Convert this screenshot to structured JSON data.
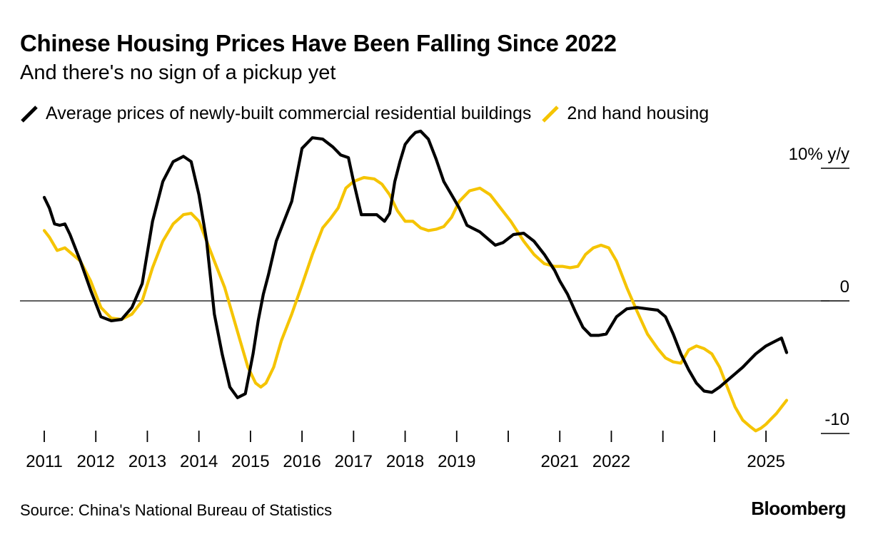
{
  "header": {
    "title": "Chinese Housing Prices Have Been Falling Since 2022",
    "subtitle": "And there's no sign of a pickup yet"
  },
  "legend": [
    {
      "label": "Average prices of newly-built commercial residential buildings",
      "color": "#000000"
    },
    {
      "label": "2nd hand housing",
      "color": "#F5C400"
    }
  ],
  "footer": {
    "source": "Source: China's National Bureau of Statistics",
    "brand": "Bloomberg"
  },
  "chart_data": {
    "type": "line",
    "title": "Chinese Housing Prices Have Been Falling Since 2022",
    "subtitle": "And there's no sign of a pickup yet",
    "xlabel": "",
    "ylabel": "% y/y",
    "ylim": [
      -10.6,
      11
    ],
    "xlim": [
      2010.95,
      2025.5
    ],
    "y_ticks": [
      {
        "value": 10,
        "label": "10% y/y"
      },
      {
        "value": 0,
        "label": "0"
      },
      {
        "value": -10,
        "label": "-10"
      }
    ],
    "x_ticks": [
      2011,
      2012,
      2013,
      2014,
      2015,
      2016,
      2017,
      2018,
      2019,
      2020,
      2021,
      2022,
      2023,
      2024,
      2025
    ],
    "x_tick_labels": [
      {
        "value": 2011,
        "label": "2011"
      },
      {
        "value": 2012,
        "label": "2012"
      },
      {
        "value": 2013,
        "label": "2013"
      },
      {
        "value": 2014,
        "label": "2014"
      },
      {
        "value": 2015,
        "label": "2015"
      },
      {
        "value": 2016,
        "label": "2016"
      },
      {
        "value": 2017,
        "label": "2017"
      },
      {
        "value": 2018,
        "label": "2018"
      },
      {
        "value": 2019,
        "label": "2019"
      },
      {
        "value": 2021,
        "label": "2021"
      },
      {
        "value": 2022,
        "label": "2022"
      },
      {
        "value": 2025,
        "label": "2025"
      }
    ],
    "zero_line": true,
    "grid": false,
    "legend_position": "top-left",
    "series": [
      {
        "name": "Average prices of newly-built commercial residential buildings",
        "color": "#000000",
        "x": [
          2011.0,
          2011.1,
          2011.2,
          2011.3,
          2011.4,
          2011.5,
          2011.7,
          2011.9,
          2012.1,
          2012.3,
          2012.5,
          2012.7,
          2012.9,
          2013.1,
          2013.3,
          2013.5,
          2013.7,
          2013.85,
          2014.0,
          2014.15,
          2014.3,
          2014.45,
          2014.6,
          2014.75,
          2014.9,
          2015.05,
          2015.15,
          2015.25,
          2015.35,
          2015.5,
          2015.65,
          2015.8,
          2016.0,
          2016.2,
          2016.4,
          2016.6,
          2016.75,
          2016.9,
          2017.0,
          2017.15,
          2017.3,
          2017.45,
          2017.6,
          2017.7,
          2017.8,
          2017.9,
          2018.0,
          2018.1,
          2018.2,
          2018.3,
          2018.45,
          2018.6,
          2018.75,
          2018.9,
          2019.05,
          2019.2,
          2019.3,
          2019.45,
          2019.6,
          2019.75,
          2019.9,
          2020.1,
          2020.3,
          2020.5,
          2020.7,
          2020.9,
          2021.0,
          2021.15,
          2021.3,
          2021.45,
          2021.6,
          2021.75,
          2021.9,
          2022.1,
          2022.3,
          2022.5,
          2022.7,
          2022.9,
          2023.05,
          2023.2,
          2023.35,
          2023.5,
          2023.65,
          2023.8,
          2023.95,
          2024.1,
          2024.25,
          2024.4,
          2024.55,
          2024.7,
          2024.8,
          2024.9,
          2025.0,
          2025.1,
          2025.2,
          2025.3,
          2025.4
        ],
        "values": [
          7.8,
          7.0,
          5.8,
          5.7,
          5.8,
          5.0,
          3.0,
          0.8,
          -1.2,
          -1.5,
          -1.4,
          -0.5,
          1.3,
          6.0,
          9.0,
          10.5,
          10.9,
          10.5,
          8.0,
          4.5,
          -1.0,
          -4.0,
          -6.5,
          -7.3,
          -7.0,
          -4.0,
          -1.5,
          0.5,
          2.0,
          4.5,
          6.0,
          7.5,
          11.5,
          12.3,
          12.2,
          11.6,
          11.0,
          10.8,
          9.0,
          6.5,
          6.5,
          6.5,
          6.0,
          6.6,
          9.0,
          10.5,
          11.8,
          12.3,
          12.7,
          12.8,
          12.2,
          10.7,
          9.0,
          8.0,
          7.0,
          5.7,
          5.5,
          5.2,
          4.7,
          4.2,
          4.4,
          5.0,
          5.1,
          4.5,
          3.5,
          2.3,
          1.5,
          0.5,
          -0.8,
          -2.0,
          -2.6,
          -2.6,
          -2.5,
          -1.2,
          -0.6,
          -0.5,
          -0.6,
          -0.7,
          -1.2,
          -2.5,
          -4.0,
          -5.2,
          -6.2,
          -6.8,
          -6.9,
          -6.5,
          -6.0,
          -5.5,
          -5.0,
          -4.4,
          -4.0,
          -3.7,
          -3.4,
          -3.2,
          -3.0,
          -2.8,
          -3.9
        ],
        "original_x_values_note": ""
      },
      {
        "name": "2nd hand housing",
        "color": "#F5C400",
        "x": [
          2011.0,
          2011.1,
          2011.25,
          2011.4,
          2011.55,
          2011.7,
          2011.9,
          2012.1,
          2012.3,
          2012.5,
          2012.7,
          2012.9,
          2013.1,
          2013.3,
          2013.5,
          2013.7,
          2013.85,
          2014.0,
          2014.15,
          2014.3,
          2014.5,
          2014.65,
          2014.8,
          2014.95,
          2015.1,
          2015.2,
          2015.3,
          2015.45,
          2015.6,
          2015.8,
          2016.0,
          2016.2,
          2016.4,
          2016.55,
          2016.7,
          2016.85,
          2017.0,
          2017.2,
          2017.4,
          2017.55,
          2017.7,
          2017.85,
          2018.0,
          2018.15,
          2018.3,
          2018.45,
          2018.6,
          2018.75,
          2018.9,
          2019.05,
          2019.25,
          2019.45,
          2019.65,
          2019.85,
          2020.05,
          2020.3,
          2020.5,
          2020.7,
          2020.9,
          2021.05,
          2021.2,
          2021.35,
          2021.5,
          2021.65,
          2021.8,
          2021.95,
          2022.1,
          2022.3,
          2022.5,
          2022.7,
          2022.9,
          2023.05,
          2023.2,
          2023.35,
          2023.5,
          2023.65,
          2023.8,
          2023.95,
          2024.1,
          2024.25,
          2024.4,
          2024.55,
          2024.7,
          2024.8,
          2024.9,
          2025.0,
          2025.1,
          2025.2,
          2025.3,
          2025.4
        ],
        "values": [
          5.3,
          4.8,
          3.8,
          4.0,
          3.5,
          3.0,
          1.5,
          -0.5,
          -1.3,
          -1.4,
          -1.0,
          0.0,
          2.5,
          4.5,
          5.8,
          6.5,
          6.6,
          6.0,
          4.5,
          3.0,
          1.0,
          -1.0,
          -3.0,
          -5.0,
          -6.2,
          -6.5,
          -6.2,
          -5.0,
          -3.0,
          -1.0,
          1.2,
          3.5,
          5.5,
          6.2,
          7.0,
          8.5,
          9.0,
          9.3,
          9.2,
          8.8,
          8.0,
          6.8,
          6.0,
          6.0,
          5.5,
          5.3,
          5.4,
          5.6,
          6.3,
          7.5,
          8.3,
          8.5,
          8.0,
          7.0,
          6.0,
          4.5,
          3.5,
          2.8,
          2.6,
          2.6,
          2.5,
          2.6,
          3.5,
          4.0,
          4.2,
          4.0,
          3.0,
          1.0,
          -0.8,
          -2.5,
          -3.6,
          -4.3,
          -4.6,
          -4.7,
          -3.7,
          -3.4,
          -3.6,
          -4.0,
          -5.0,
          -6.5,
          -8.0,
          -9.0,
          -9.5,
          -9.8,
          -9.6,
          -9.3,
          -8.9,
          -8.5,
          -8.0,
          -7.5
        ]
      }
    ]
  }
}
